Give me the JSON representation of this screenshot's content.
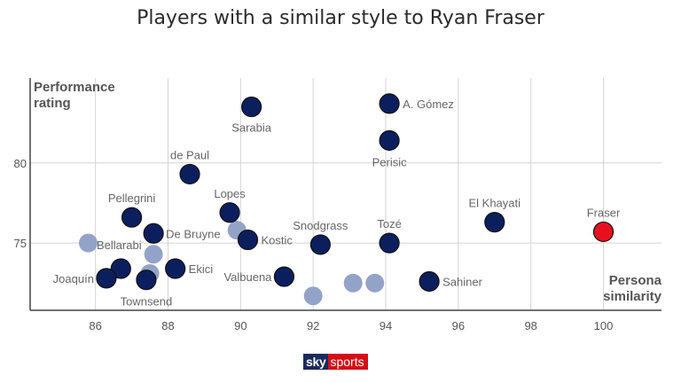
{
  "title": "Players with a similar style to Ryan Fraser",
  "logo": {
    "sky": "sky",
    "sports": "sports"
  },
  "chart_data": {
    "type": "scatter",
    "title": "Players with a similar style to Ryan Fraser",
    "ylabel_lines": [
      "Performance",
      "rating"
    ],
    "xlabel_lines": [
      "Persona",
      "similarity"
    ],
    "xlim": [
      84.2,
      101.6
    ],
    "ylim": [
      70.8,
      85.3
    ],
    "xticks": [
      86,
      88,
      90,
      92,
      94,
      96,
      98,
      100
    ],
    "yticks": [
      75,
      80
    ],
    "grid": true,
    "colors": {
      "highlight": "#e8101f",
      "named": "#0b1f5e",
      "unnamed": "#93a3c8",
      "gridline": "#d4d4d4",
      "label": "#666666"
    },
    "points": [
      {
        "name": "Fraser",
        "x": 100.0,
        "y": 75.7,
        "group": "highlight"
      },
      {
        "name": "A. Gómez",
        "x": 94.1,
        "y": 83.7,
        "group": "named"
      },
      {
        "name": "Sarabia",
        "x": 90.3,
        "y": 83.5,
        "group": "named"
      },
      {
        "name": "Perisic",
        "x": 94.1,
        "y": 81.4,
        "group": "named"
      },
      {
        "name": "de Paul",
        "x": 88.6,
        "y": 79.3,
        "group": "named"
      },
      {
        "name": "Pellegrini",
        "x": 87.0,
        "y": 76.6,
        "group": "named"
      },
      {
        "name": "Lopes",
        "x": 89.7,
        "y": 76.9,
        "group": "named"
      },
      {
        "name": "De Bruyne",
        "x": 87.6,
        "y": 75.6,
        "group": "named"
      },
      {
        "name": "Kostic",
        "x": 90.2,
        "y": 75.2,
        "group": "named"
      },
      {
        "name": "Snodgrass",
        "x": 92.2,
        "y": 74.9,
        "group": "named"
      },
      {
        "name": "Tozé",
        "x": 94.1,
        "y": 75.0,
        "group": "named"
      },
      {
        "name": "El Khayati",
        "x": 97.0,
        "y": 76.3,
        "group": "named"
      },
      {
        "name": "Bellarabi",
        "x": 86.7,
        "y": 73.4,
        "group": "named"
      },
      {
        "name": "Joaquín",
        "x": 86.3,
        "y": 72.8,
        "group": "named"
      },
      {
        "name": "Townsend",
        "x": 87.4,
        "y": 72.7,
        "group": "named"
      },
      {
        "name": "Ekici",
        "x": 88.2,
        "y": 73.4,
        "group": "named"
      },
      {
        "name": "Valbuena",
        "x": 91.2,
        "y": 72.9,
        "group": "named"
      },
      {
        "name": "Sahiner",
        "x": 95.2,
        "y": 72.6,
        "group": "named"
      },
      {
        "name": "",
        "x": 85.8,
        "y": 75.0,
        "group": "unnamed"
      },
      {
        "name": "",
        "x": 89.9,
        "y": 75.8,
        "group": "unnamed"
      },
      {
        "name": "",
        "x": 87.6,
        "y": 74.3,
        "group": "unnamed"
      },
      {
        "name": "",
        "x": 87.5,
        "y": 73.1,
        "group": "unnamed"
      },
      {
        "name": "",
        "x": 92.0,
        "y": 71.7,
        "group": "unnamed"
      },
      {
        "name": "",
        "x": 93.1,
        "y": 72.5,
        "group": "unnamed"
      },
      {
        "name": "",
        "x": 93.7,
        "y": 72.5,
        "group": "unnamed"
      }
    ]
  }
}
